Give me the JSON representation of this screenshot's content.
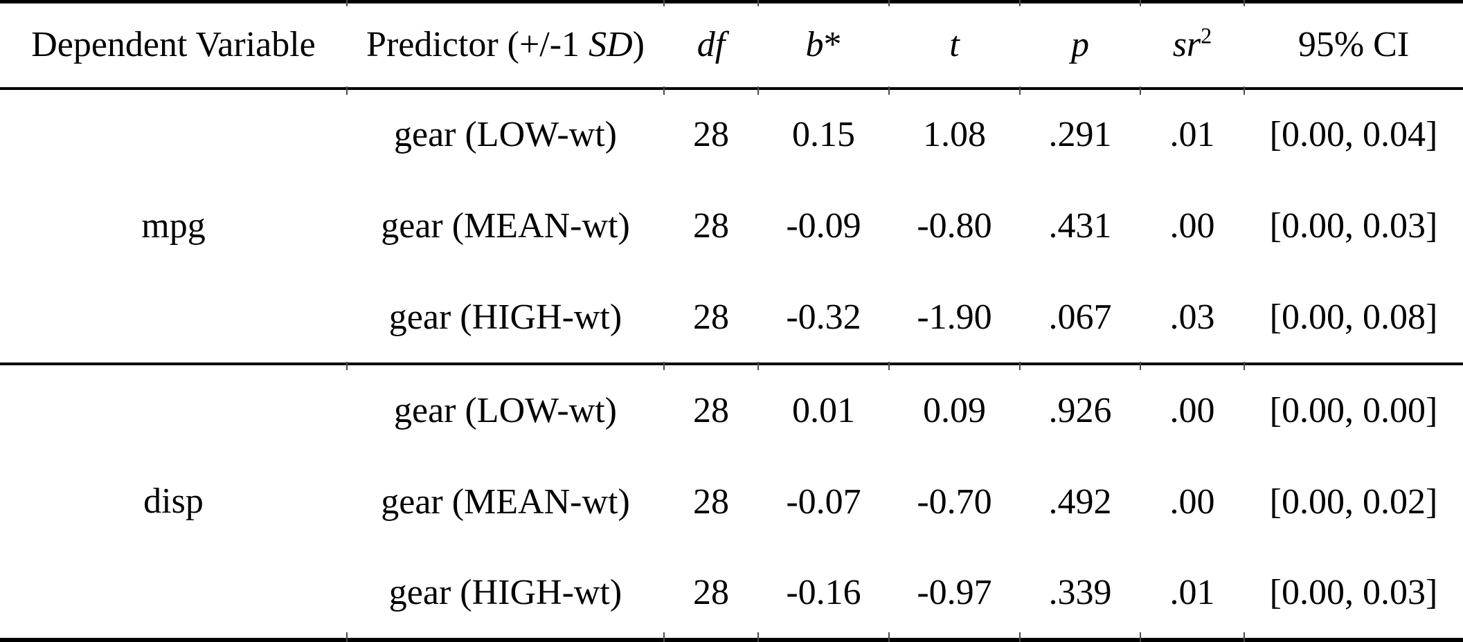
{
  "colors": {
    "background": "#ffffff",
    "text": "#000000",
    "rule": "#000000",
    "junction_tick": "#4a4a4a"
  },
  "header": {
    "dependent_variable": "Dependent Variable",
    "predictor_prefix": "Predictor (+/-1 ",
    "predictor_sd": "SD",
    "predictor_suffix": ")",
    "df": "df",
    "b": "b",
    "b_star": "*",
    "t": "t",
    "p": "p",
    "sr": "sr",
    "sr_sup": "2",
    "ci": "95% CI"
  },
  "body": {
    "groups": [
      {
        "dv": "mpg",
        "rows": [
          {
            "predictor": "gear (LOW-wt)",
            "df": "28",
            "b": "0.15",
            "t": "1.08",
            "p": ".291",
            "sr2": ".01",
            "ci": "[0.00, 0.04]"
          },
          {
            "predictor": "gear (MEAN-wt)",
            "df": "28",
            "b": "-0.09",
            "t": "-0.80",
            "p": ".431",
            "sr2": ".00",
            "ci": "[0.00, 0.03]"
          },
          {
            "predictor": "gear (HIGH-wt)",
            "df": "28",
            "b": "-0.32",
            "t": "-1.90",
            "p": ".067",
            "sr2": ".03",
            "ci": "[0.00, 0.08]"
          }
        ]
      },
      {
        "dv": "disp",
        "rows": [
          {
            "predictor": "gear (LOW-wt)",
            "df": "28",
            "b": "0.01",
            "t": "0.09",
            "p": ".926",
            "sr2": ".00",
            "ci": "[0.00, 0.00]"
          },
          {
            "predictor": "gear (MEAN-wt)",
            "df": "28",
            "b": "-0.07",
            "t": "-0.70",
            "p": ".492",
            "sr2": ".00",
            "ci": "[0.00, 0.02]"
          },
          {
            "predictor": "gear (HIGH-wt)",
            "df": "28",
            "b": "-0.16",
            "t": "-0.97",
            "p": ".339",
            "sr2": ".01",
            "ci": "[0.00, 0.03]"
          }
        ]
      }
    ]
  }
}
